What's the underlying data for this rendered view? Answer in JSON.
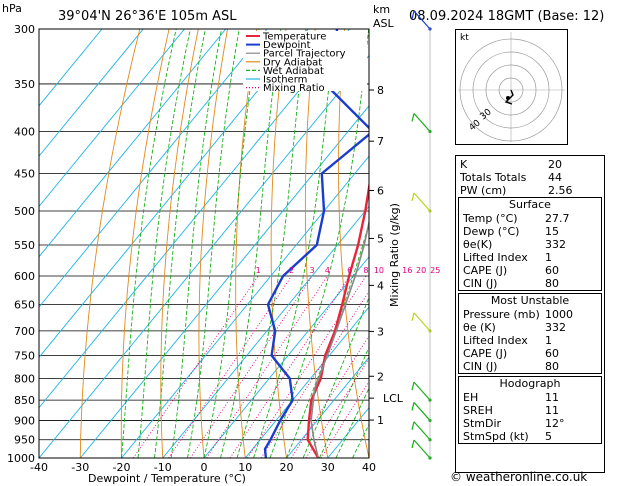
{
  "header": {
    "location": "39°04'N 26°36'E 105m ASL",
    "datetime": "08.09.2024 18GMT (Base: 12)",
    "hpa_label": "hPa",
    "km_label": "km",
    "asl_label": "ASL"
  },
  "chart_data": {
    "type": "line",
    "title": "39°04'N 26°36'E 105m ASL",
    "xlabel": "Dewpoint / Temperature (°C)",
    "ylabel": "hPa",
    "y2label": "Mixing Ratio (g/kg)",
    "x_ticks": [
      -40,
      -30,
      -20,
      -10,
      0,
      10,
      20,
      30,
      40
    ],
    "pressure_ticks": [
      300,
      350,
      400,
      450,
      500,
      550,
      600,
      650,
      700,
      750,
      800,
      850,
      900,
      950,
      1000
    ],
    "km_ticks": [
      {
        "label": "8",
        "p": 356
      },
      {
        "label": "7",
        "p": 411
      },
      {
        "label": "6",
        "p": 472
      },
      {
        "label": "5",
        "p": 540
      },
      {
        "label": "4",
        "p": 616
      },
      {
        "label": "3",
        "p": 701
      },
      {
        "label": "2",
        "p": 795
      },
      {
        "label": "1",
        "p": 899
      }
    ],
    "lcl": {
      "label": "LCL",
      "p": 822
    },
    "mixing_ratio_labels": [
      "1",
      "2",
      "3",
      "4",
      "6",
      "8",
      "10",
      "16",
      "20",
      "25"
    ],
    "mixing_ratio_values": [
      1,
      2,
      3,
      4,
      6,
      8,
      10,
      16,
      20,
      25
    ],
    "legend": [
      "Temperature",
      "Dewpoint",
      "Parcel Trajectory",
      "Dry Adiabat",
      "Wet Adiabat",
      "Isotherm",
      "Mixing Ratio"
    ],
    "legend_position": "top-right",
    "series": [
      {
        "name": "Temperature",
        "color": "#e8253a",
        "points": [
          [
            1000,
            27.7
          ],
          [
            950,
            21.5
          ],
          [
            900,
            18.0
          ],
          [
            850,
            14.5
          ],
          [
            800,
            12.5
          ],
          [
            750,
            9.0
          ],
          [
            700,
            6.5
          ],
          [
            650,
            3.0
          ],
          [
            600,
            -1.0
          ],
          [
            550,
            -5.0
          ],
          [
            500,
            -10.0
          ],
          [
            450,
            -16.0
          ],
          [
            400,
            -23.0
          ],
          [
            350,
            -31.0
          ],
          [
            300,
            -40.0
          ]
        ]
      },
      {
        "name": "Dewpoint",
        "color": "#1a3ccf",
        "points": [
          [
            1000,
            15.0
          ],
          [
            975,
            13.0
          ],
          [
            950,
            12.5
          ],
          [
            900,
            11.0
          ],
          [
            850,
            10.0
          ],
          [
            800,
            5.0
          ],
          [
            750,
            -4.0
          ],
          [
            700,
            -8.0
          ],
          [
            650,
            -15.0
          ],
          [
            600,
            -17.0
          ],
          [
            550,
            -15.0
          ],
          [
            500,
            -20.0
          ],
          [
            450,
            -28.0
          ],
          [
            400,
            -24.0
          ],
          [
            350,
            -45.0
          ],
          [
            300,
            -53.0
          ]
        ]
      },
      {
        "name": "Parcel Trajectory",
        "color": "#888888",
        "points": [
          [
            1000,
            27.7
          ],
          [
            950,
            23.0
          ],
          [
            900,
            18.5
          ],
          [
            850,
            15.0
          ],
          [
            822,
            13.0
          ],
          [
            800,
            12.0
          ],
          [
            750,
            9.5
          ],
          [
            700,
            6.8
          ],
          [
            650,
            3.8
          ],
          [
            600,
            0.5
          ],
          [
            550,
            -3.5
          ],
          [
            500,
            -8.5
          ],
          [
            450,
            -14.0
          ],
          [
            400,
            -20.5
          ],
          [
            350,
            -28.5
          ],
          [
            300,
            -37.5
          ]
        ]
      }
    ]
  },
  "indices": {
    "rows": [
      {
        "k": "K",
        "v": "20"
      },
      {
        "k": "Totals Totals",
        "v": "44"
      },
      {
        "k": "PW (cm)",
        "v": "2.56"
      }
    ]
  },
  "surface": {
    "title": "Surface",
    "rows": [
      {
        "k": "Temp (°C)",
        "v": "27.7"
      },
      {
        "k": "Dewp (°C)",
        "v": "15"
      },
      {
        "k": "θe(K)",
        "v": "332"
      },
      {
        "k": "Lifted Index",
        "v": "1"
      },
      {
        "k": "CAPE (J)",
        "v": "60"
      },
      {
        "k": "CIN (J)",
        "v": "80"
      }
    ]
  },
  "most_unstable": {
    "title": "Most Unstable",
    "rows": [
      {
        "k": "Pressure (mb)",
        "v": "1000"
      },
      {
        "k": "θe (K)",
        "v": "332"
      },
      {
        "k": "Lifted Index",
        "v": "1"
      },
      {
        "k": "CAPE (J)",
        "v": "60"
      },
      {
        "k": "CIN (J)",
        "v": "80"
      }
    ]
  },
  "hodograph": {
    "title": "Hodograph",
    "kt_label": "kt",
    "ring_labels": [
      "40",
      "30"
    ],
    "rows": [
      {
        "k": "EH",
        "v": "11"
      },
      {
        "k": "SREH",
        "v": "11"
      },
      {
        "k": "StmDir",
        "v": "12°"
      },
      {
        "k": "StmSpd (kt)",
        "v": "5"
      }
    ]
  },
  "credit": "© weatheronline.co.uk",
  "colors": {
    "temperature": "#e8253a",
    "dewpoint": "#1a3ccf",
    "parcel": "#888888",
    "dry_adiabat": "#e08a1a",
    "wet_adiabat": "#19b019",
    "isotherm": "#1eb4e6",
    "mixing_ratio": "#e0007a"
  }
}
